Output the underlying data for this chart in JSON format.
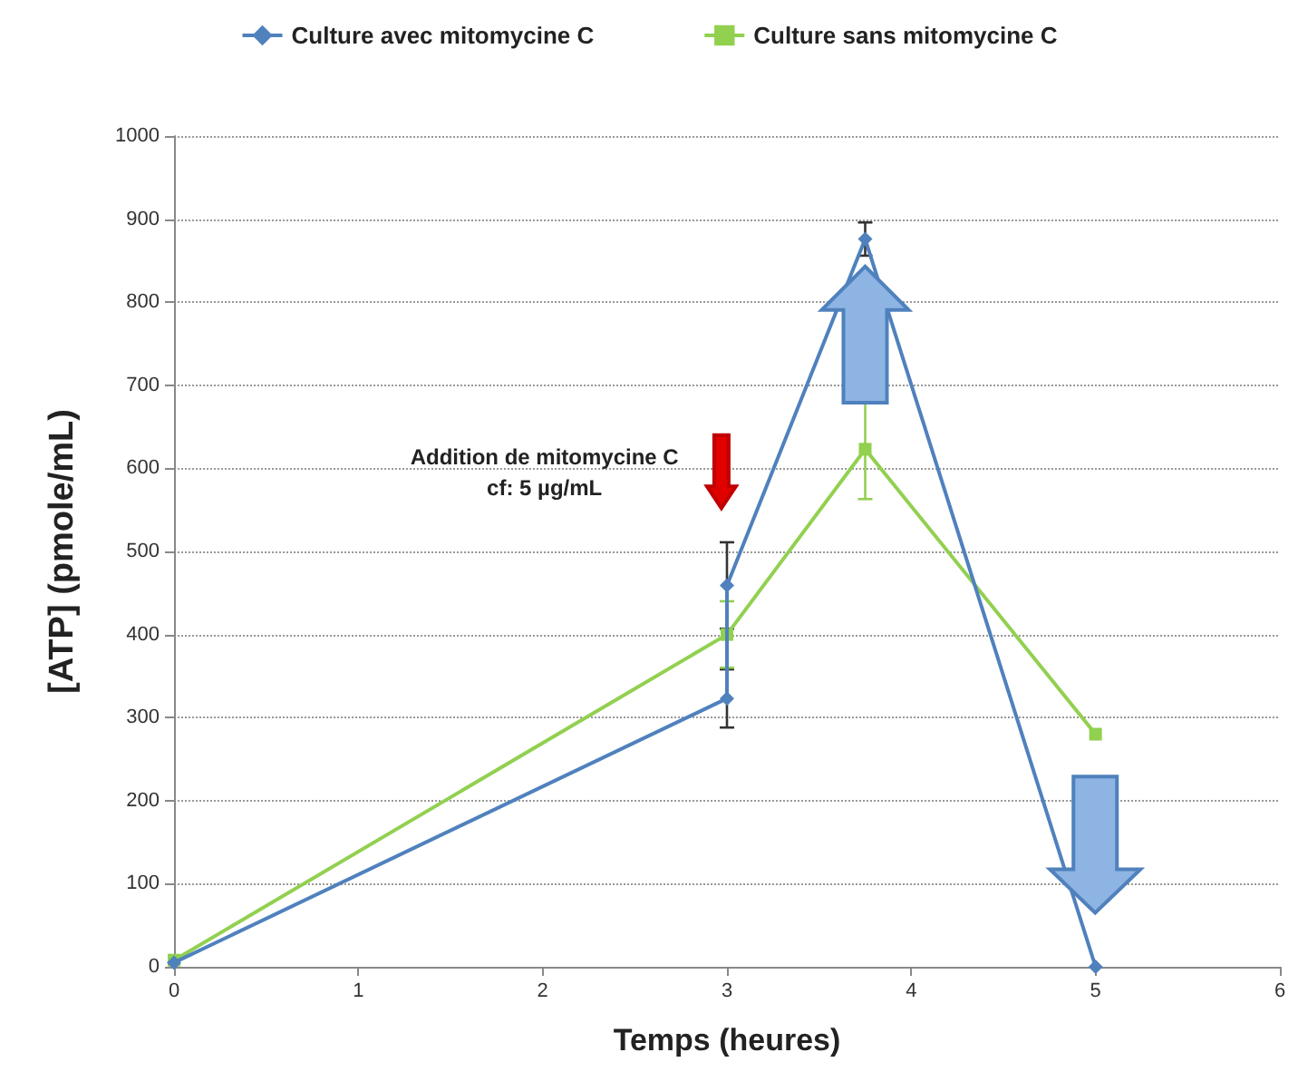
{
  "chart_data": {
    "type": "line",
    "xlabel": "Temps (heures)",
    "ylabel": "[ATP] (pmole/mL)",
    "series": [
      {
        "name": "Culture avec mitomycine C",
        "color": "#4f81bd",
        "marker": "diamond",
        "x": [
          0,
          3,
          3,
          3.75,
          5
        ],
        "values": [
          5,
          323,
          459,
          876,
          0
        ],
        "errors": [
          null,
          35,
          52,
          20,
          null
        ]
      },
      {
        "name": "Culture sans mitomycine C",
        "color": "#92d050",
        "marker": "square",
        "x": [
          0,
          3,
          3.75,
          5
        ],
        "values": [
          8,
          400,
          623,
          280
        ],
        "errors": [
          null,
          40,
          60,
          null
        ]
      }
    ],
    "xlim": [
      0,
      6
    ],
    "xticks": [
      0,
      1,
      2,
      3,
      4,
      5,
      6
    ],
    "ylim": [
      0,
      1000
    ],
    "yticks": [
      0,
      100,
      200,
      300,
      400,
      500,
      600,
      700,
      800,
      900,
      1000
    ],
    "grid": "y",
    "legend": "top",
    "annotations": [
      "Addition de mitomycine C\ncf: 5 µg/mL"
    ]
  }
}
